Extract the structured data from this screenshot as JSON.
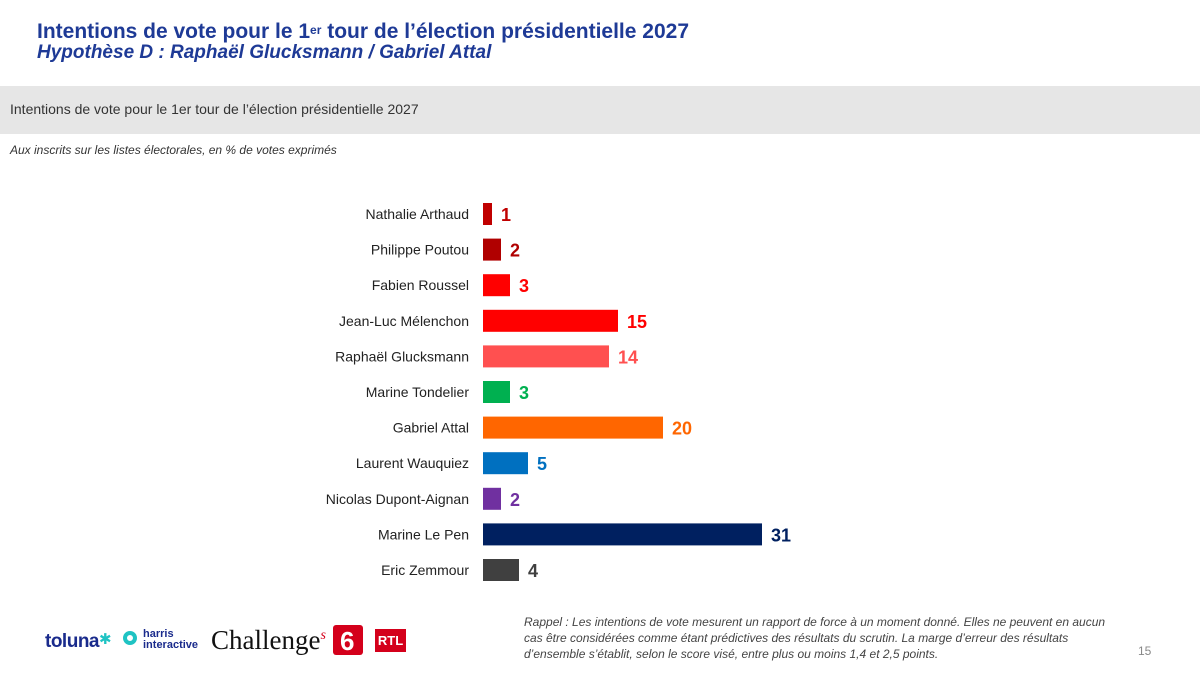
{
  "header": {
    "title_main": "Intentions de vote pour le 1",
    "title_sup": "er",
    "title_rest": " tour de l’élection présidentielle 2027",
    "subtitle": "Hypothèse D : Raphaël Glucksmann / Gabriel Attal"
  },
  "band": {
    "text": "Intentions  de vote pour le 1er tour de l’élection présidentielle 2027"
  },
  "note": "Aux inscrits sur les listes électorales, en % de votes exprimés",
  "chart_data": {
    "type": "bar",
    "orientation": "horizontal",
    "categories": [
      "Nathalie Arthaud",
      "Philippe Poutou",
      "Fabien Roussel",
      "Jean-Luc Mélenchon",
      "Raphaël Glucksmann",
      "Marine Tondelier",
      "Gabriel Attal",
      "Laurent Wauquiez",
      "Nicolas Dupont-Aignan",
      "Marine Le Pen",
      "Eric Zemmour"
    ],
    "values": [
      1,
      2,
      3,
      15,
      14,
      3,
      20,
      5,
      2,
      31,
      4
    ],
    "colors": [
      "#c00000",
      "#b00000",
      "#ff0000",
      "#ff0000",
      "#ff5050",
      "#00b050",
      "#ff6600",
      "#0070c0",
      "#7030a0",
      "#002060",
      "#404040"
    ],
    "label_colors": [
      "#c00000",
      "#b00000",
      "#ff0000",
      "#ff0000",
      "#ff5050",
      "#00b050",
      "#ff6600",
      "#0070c0",
      "#7030a0",
      "#002060",
      "#404040"
    ],
    "xlim": [
      0,
      31
    ],
    "grid": false,
    "legend": "none"
  },
  "footer": {
    "logos": {
      "toluna": "toluna",
      "harris": "harris",
      "interactive": "interactive",
      "challenges": "Challenge",
      "challenges_s": "s",
      "m6": "6",
      "rtl": "RTL"
    },
    "rappel": "Rappel : Les intentions de vote mesurent un rapport de force à un moment donné. Elles ne peuvent en aucun cas être considérées comme étant prédictives des résultats du scrutin. La marge d’erreur des résultats d’ensemble s’établit, selon le score visé, entre plus ou moins 1,4 et 2,5 points.",
    "page_number": "15"
  }
}
